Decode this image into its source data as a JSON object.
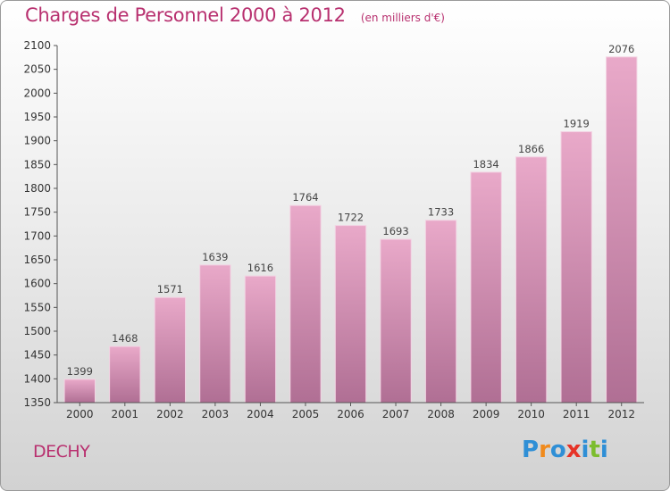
{
  "header": {
    "title": "Charges de Personnel 2000 à 2012",
    "subtitle": "(en milliers d'€)"
  },
  "footer": {
    "place": "DECHY",
    "logo_letters": [
      "P",
      "r",
      "o",
      "x",
      "i",
      "t",
      "i"
    ],
    "logo_colors": [
      "#2f8fd6",
      "#f08a1c",
      "#2f8fd6",
      "#e63327",
      "#2f8fd6",
      "#7cbd2e",
      "#2f8fd6"
    ]
  },
  "chart_data": {
    "type": "bar",
    "categories": [
      "2000",
      "2001",
      "2002",
      "2003",
      "2004",
      "2005",
      "2006",
      "2007",
      "2008",
      "2009",
      "2010",
      "2011",
      "2012"
    ],
    "values": [
      1399,
      1468,
      1571,
      1639,
      1616,
      1764,
      1722,
      1693,
      1733,
      1834,
      1866,
      1919,
      2076
    ],
    "title": "Charges de Personnel 2000 à 2012",
    "xlabel": "",
    "ylabel": "",
    "ylim": [
      1350,
      2100
    ],
    "yticks": [
      1350,
      1400,
      1450,
      1500,
      1550,
      1600,
      1650,
      1700,
      1750,
      1800,
      1850,
      1900,
      1950,
      2000,
      2050,
      2100
    ],
    "grid": false,
    "bar_color": "#d98bb2"
  }
}
